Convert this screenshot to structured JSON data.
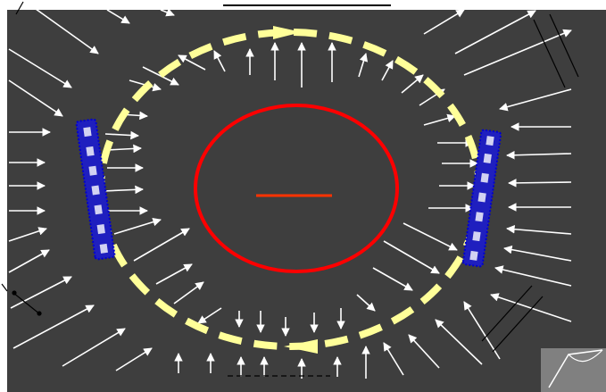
{
  "colors": {
    "page_background": "#ffffff",
    "panel_background": "#3e3e3e",
    "flow_arrow": "#ffffff",
    "dashed_ring": "#ffff99",
    "dashed_ring_arrow": "#ffff99",
    "central_circle": "#ff0000",
    "center_bar": "#ff3300",
    "blue_strip": "#0000cc",
    "hatch_lines": "#000000",
    "corner_page_fill": "#808080",
    "corner_page_outline": "#ffffff",
    "top_underline": "#000000"
  },
  "legend": {
    "underline": "",
    "dashed_line": ""
  }
}
